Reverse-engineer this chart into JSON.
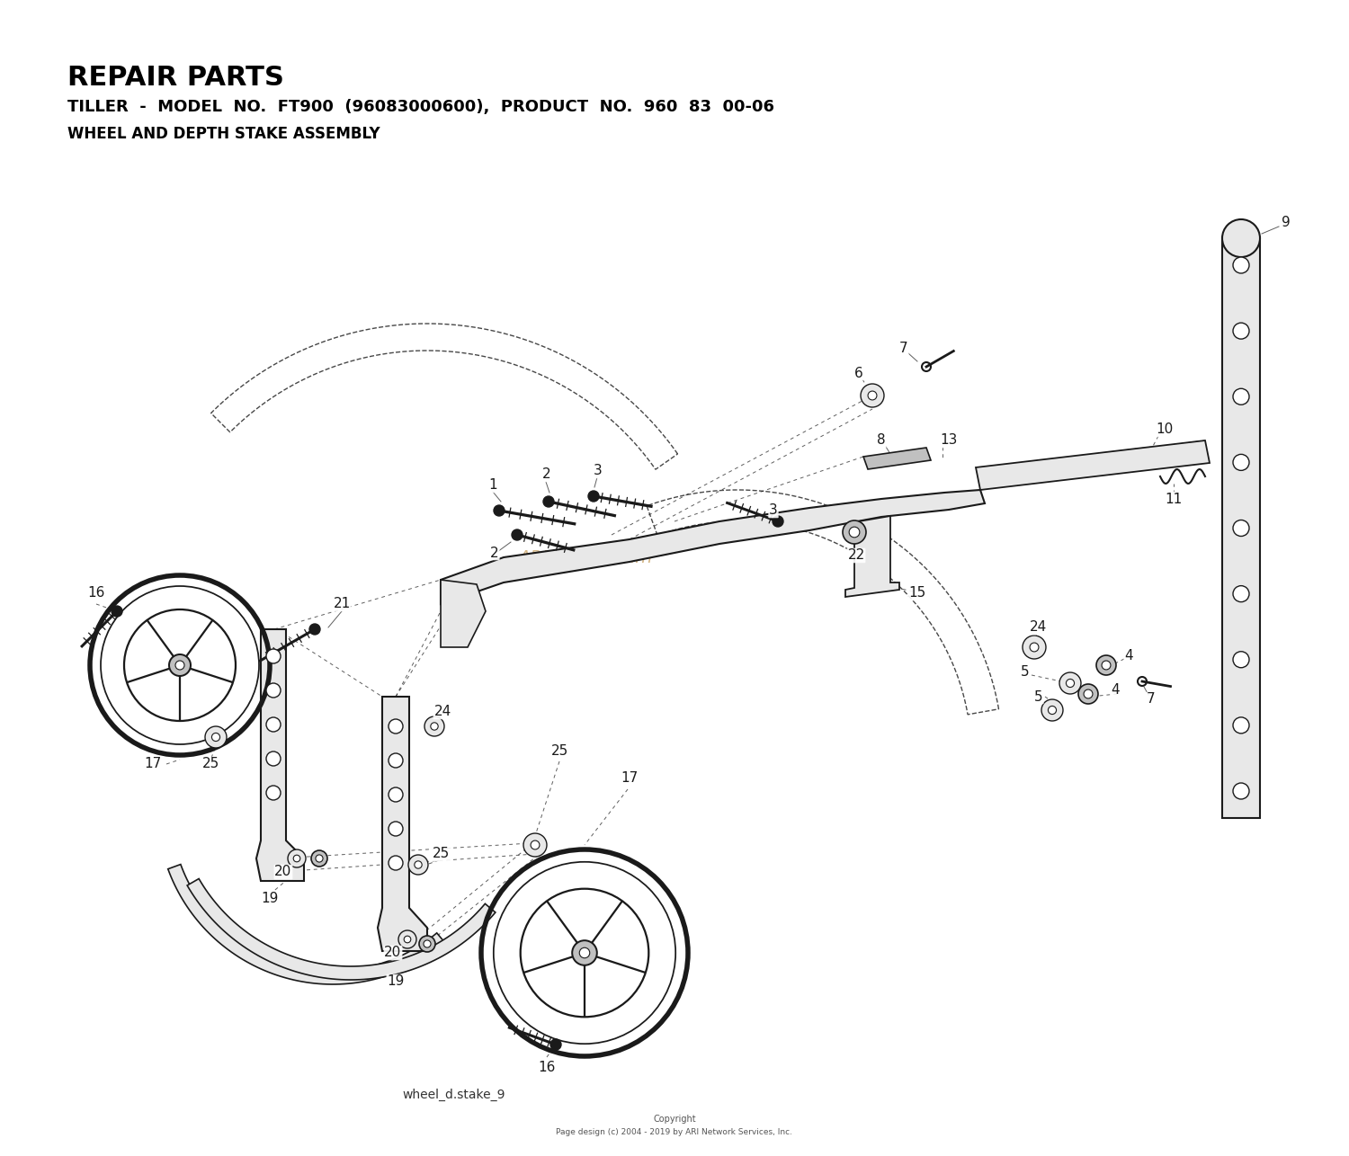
{
  "title_line1": "REPAIR PARTS",
  "title_line2": "TILLER  -  MODEL  NO.  FT900  (96083000600),  PRODUCT  NO.  960  83  00-06",
  "title_line3": "WHEEL AND DEPTH STAKE ASSEMBLY",
  "watermark": "ARI PartStream™",
  "footer_filename": "wheel_d.stake_9",
  "footer_copyright": "Copyright",
  "footer_pagedesign": "Page design (c) 2004 - 2019 by ARI Network Services, Inc.",
  "bg_color": "#ffffff",
  "dc": "#1a1a1a",
  "light_gray": "#e8e8e8",
  "mid_gray": "#c0c0c0"
}
